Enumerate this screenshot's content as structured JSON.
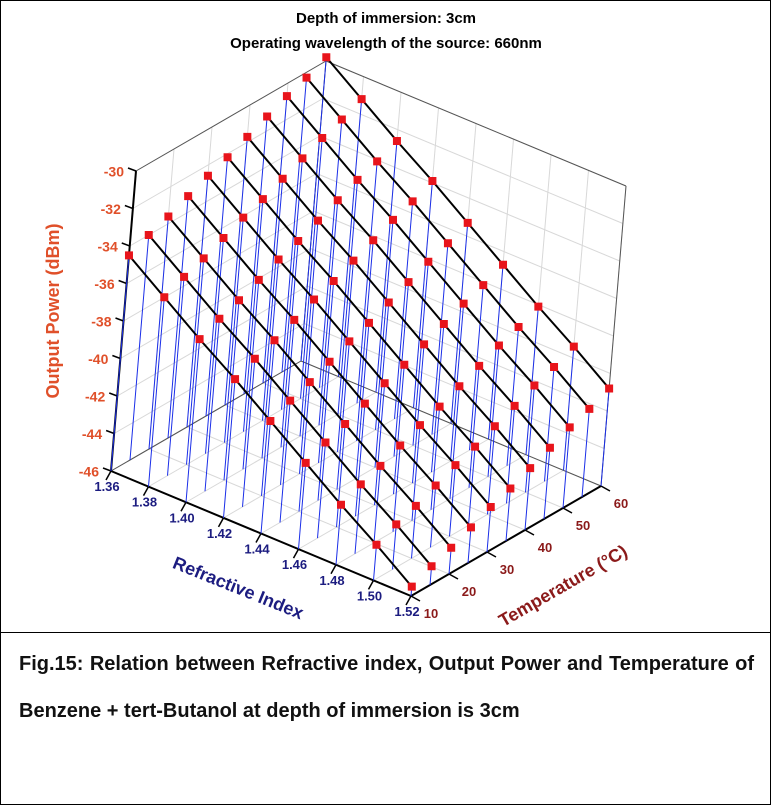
{
  "chart_data": {
    "type": "surface3d",
    "title": "Depth of immersion: 3cm",
    "subtitle": "Operating wavelength of the source: 660nm",
    "xlabel": "Refractive Index",
    "ylabel": "Temperature (°C)",
    "zlabel": "Output Power (dBm)",
    "x": [
      1.36,
      1.38,
      1.4,
      1.42,
      1.44,
      1.46,
      1.48,
      1.5,
      1.52
    ],
    "y": [
      10,
      15,
      20,
      25,
      30,
      35,
      40,
      45,
      50,
      55,
      60
    ],
    "values": [
      [
        -34.5,
        -35.9,
        -37.3,
        -38.6,
        -40.0,
        -41.4,
        -42.8,
        -44.1,
        -45.5
      ],
      [
        -34.0,
        -35.4,
        -36.8,
        -38.1,
        -39.5,
        -40.9,
        -42.3,
        -43.6,
        -45.0
      ],
      [
        -33.6,
        -35.0,
        -36.4,
        -37.7,
        -39.1,
        -40.5,
        -41.9,
        -43.2,
        -44.6
      ],
      [
        -33.1,
        -34.5,
        -35.9,
        -37.2,
        -38.6,
        -40.0,
        -41.4,
        -42.7,
        -44.1
      ],
      [
        -32.6,
        -34.0,
        -35.4,
        -36.7,
        -38.1,
        -39.5,
        -40.9,
        -42.2,
        -43.6
      ],
      [
        -32.2,
        -33.6,
        -35.0,
        -36.3,
        -37.7,
        -39.1,
        -40.5,
        -41.8,
        -43.2
      ],
      [
        -31.7,
        -33.1,
        -34.5,
        -35.8,
        -37.2,
        -38.6,
        -40.0,
        -41.3,
        -42.7
      ],
      [
        -31.2,
        -32.6,
        -34.0,
        -35.3,
        -36.7,
        -38.1,
        -39.5,
        -40.8,
        -42.2
      ],
      [
        -30.7,
        -32.1,
        -33.5,
        -34.8,
        -36.2,
        -37.6,
        -39.0,
        -40.3,
        -41.7
      ],
      [
        -30.3,
        -31.7,
        -33.1,
        -34.4,
        -35.8,
        -37.2,
        -38.6,
        -39.9,
        -41.3
      ],
      [
        -29.8,
        -31.2,
        -32.6,
        -33.9,
        -35.3,
        -36.7,
        -38.1,
        -39.4,
        -40.8
      ]
    ],
    "xlim": [
      1.36,
      1.52
    ],
    "xticks": [
      1.36,
      1.38,
      {
        "value": 1.4,
        "label": "1.40"
      },
      1.42,
      1.44,
      1.46,
      1.48,
      {
        "value": 1.5,
        "label": "1.50"
      },
      1.52
    ],
    "ylim": [
      10,
      60
    ],
    "yticks": [
      10,
      20,
      30,
      40,
      50,
      60
    ],
    "zlim": [
      -46,
      -30
    ],
    "zticks": [
      -46,
      -44,
      -42,
      -40,
      -38,
      -36,
      -34,
      -32,
      -30
    ],
    "grid": true,
    "point_color": "#e8141b",
    "line_color": "#000000",
    "stem_color": "#1a2ee8",
    "xaxis_color": "#1c1c80",
    "yaxis_color": "#8b1a1a",
    "zaxis_color": "#e0502a"
  },
  "caption": "Fig.15: Relation between Refractive index, Output Power and Temperature of Benzene + tert-Butanol at depth of immersion is 3cm"
}
